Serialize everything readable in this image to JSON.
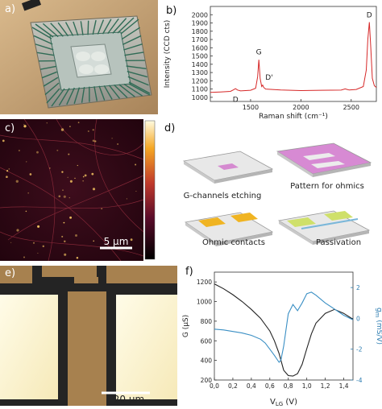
{
  "panel_labels": {
    "a": "a)",
    "b": "b)",
    "c": "c)",
    "d": "d)",
    "e": "e)",
    "f": "f)"
  },
  "colors": {
    "raman_line": "#d62828",
    "g_line": "#222222",
    "gm_line": "#3a8fc4",
    "gm_axis": "#2a7bb0",
    "scale_bar": "#ffffff"
  },
  "panel_c": {
    "scale_bar_label": "5 µm"
  },
  "panel_d": {
    "steps": [
      {
        "label": "G-channels etching"
      },
      {
        "label": "Pattern for ohmics"
      },
      {
        "label": "Ohmic contacts"
      },
      {
        "label": "Passivation"
      }
    ]
  },
  "panel_e": {
    "scale_bar_label": "20 µm"
  },
  "chart_data": [
    {
      "panel": "b",
      "type": "line",
      "xlabel": "Raman shift (cm⁻¹)",
      "ylabel": "Intensity (CCD cts)",
      "xlim": [
        1100,
        2750
      ],
      "ylim": [
        950,
        2100
      ],
      "xticks": [
        1500,
        2000,
        2500
      ],
      "yticks": [
        1000,
        1100,
        1200,
        1300,
        1400,
        1500,
        1600,
        1700,
        1800,
        1900,
        2000
      ],
      "annotations": [
        {
          "text": "D",
          "x": 1350,
          "y": 1080
        },
        {
          "text": "G",
          "x": 1582,
          "y": 1460
        },
        {
          "text": "D'",
          "x": 1620,
          "y": 1115
        },
        {
          "text": "D",
          "x": 2680,
          "y": 1910
        }
      ],
      "series": [
        {
          "x": [
            1100,
            1200,
            1300,
            1330,
            1350,
            1370,
            1400,
            1500,
            1550,
            1570,
            1582,
            1595,
            1610,
            1620,
            1630,
            1650,
            1800,
            2000,
            2200,
            2400,
            2440,
            2460,
            2480,
            2550,
            2620,
            2650,
            2665,
            2680,
            2695,
            2710,
            2730,
            2750
          ],
          "y": [
            1060,
            1065,
            1072,
            1090,
            1105,
            1088,
            1078,
            1085,
            1110,
            1250,
            1455,
            1230,
            1130,
            1148,
            1120,
            1100,
            1088,
            1082,
            1085,
            1087,
            1102,
            1095,
            1088,
            1095,
            1130,
            1330,
            1700,
            1910,
            1600,
            1230,
            1140,
            1120
          ]
        }
      ]
    },
    {
      "panel": "f",
      "type": "line",
      "xlabel": "V",
      "xlabel_sub": "LG",
      "xlabel_unit": " (V)",
      "ylabel": "G (µS)",
      "y2label": "g",
      "y2label_sub": "m",
      "y2label_unit": " (mS/V)",
      "xlim": [
        0.0,
        1.5
      ],
      "ylim": [
        200,
        1300
      ],
      "y2lim": [
        -4,
        3
      ],
      "xticks": [
        0.0,
        0.2,
        0.4,
        0.6,
        0.8,
        1.0,
        1.2,
        1.4
      ],
      "xtick_labels": [
        "0,0",
        "0,2",
        "0,4",
        "0,6",
        "0,8",
        "1,0",
        "1,2",
        "1,4"
      ],
      "yticks": [
        200,
        400,
        600,
        800,
        1000,
        1200
      ],
      "y2ticks": [
        -4,
        -2,
        0,
        2
      ],
      "series": [
        {
          "name": "G",
          "axis": "left",
          "x": [
            0.0,
            0.1,
            0.2,
            0.3,
            0.4,
            0.5,
            0.6,
            0.65,
            0.7,
            0.75,
            0.8,
            0.85,
            0.9,
            0.95,
            1.0,
            1.05,
            1.1,
            1.2,
            1.3,
            1.4,
            1.5
          ],
          "y": [
            1180,
            1130,
            1070,
            1000,
            920,
            830,
            700,
            600,
            470,
            300,
            245,
            240,
            265,
            360,
            520,
            670,
            780,
            880,
            920,
            880,
            820
          ]
        },
        {
          "name": "gm",
          "axis": "right",
          "x": [
            0.0,
            0.1,
            0.2,
            0.3,
            0.4,
            0.5,
            0.55,
            0.6,
            0.65,
            0.7,
            0.72,
            0.75,
            0.8,
            0.85,
            0.9,
            0.95,
            1.0,
            1.05,
            1.1,
            1.2,
            1.3,
            1.4,
            1.5
          ],
          "y": [
            -0.7,
            -0.75,
            -0.85,
            -0.95,
            -1.1,
            -1.35,
            -1.6,
            -2.0,
            -2.4,
            -2.85,
            -2.7,
            -1.8,
            0.3,
            0.9,
            0.5,
            1.0,
            1.6,
            1.7,
            1.5,
            1.0,
            0.6,
            0.2,
            -0.1
          ]
        }
      ]
    }
  ]
}
